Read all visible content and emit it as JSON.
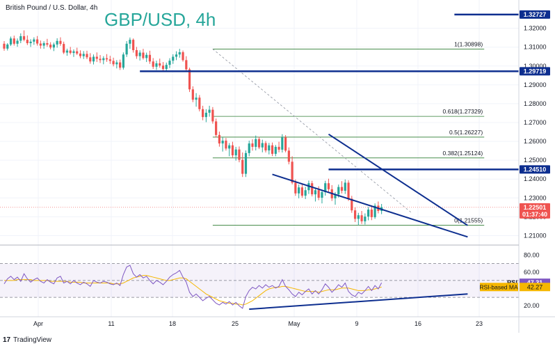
{
  "header": {
    "symbol_label": "British Pound / U.S. Dollar, 4h",
    "big_title": "GBP/USD, 4h"
  },
  "colors": {
    "up": "#26a69a",
    "down": "#ef5350",
    "trendline": "#0d2e8f",
    "fib": "#2e7d32",
    "rsi": "#7e57c2",
    "rsi_ma": "#f5b700",
    "title": "#26a69a",
    "price_badge": "#ef5350"
  },
  "footer": {
    "brand": "TradingView"
  },
  "chart_data": [
    {
      "type": "candlestick",
      "name": "price-panel",
      "y_ticks": [
        "1.32000",
        "1.31000",
        "1.30000",
        "1.29000",
        "1.28000",
        "1.27000",
        "1.26000",
        "1.25000",
        "1.24000",
        "1.23000",
        "1.22000",
        "1.21000"
      ],
      "ylim": [
        1.205,
        1.335
      ],
      "x_ticks": [
        "Apr",
        "11",
        "18",
        "25",
        "May",
        "9",
        "16",
        "23"
      ],
      "ohlc": [
        [
          1.3118,
          1.3132,
          1.3081,
          1.3092
        ],
        [
          1.3092,
          1.3121,
          1.3082,
          1.3114
        ],
        [
          1.3114,
          1.3156,
          1.3106,
          1.3146
        ],
        [
          1.3146,
          1.3161,
          1.3108,
          1.3118
        ],
        [
          1.3118,
          1.3146,
          1.3102,
          1.3134
        ],
        [
          1.3134,
          1.3173,
          1.3121,
          1.3158
        ],
        [
          1.3158,
          1.3189,
          1.3131,
          1.3139
        ],
        [
          1.3139,
          1.3162,
          1.3111,
          1.3121
        ],
        [
          1.3121,
          1.3142,
          1.3101,
          1.3129
        ],
        [
          1.3129,
          1.3152,
          1.3112,
          1.3141
        ],
        [
          1.3141,
          1.3159,
          1.3108,
          1.3119
        ],
        [
          1.3119,
          1.3135,
          1.3092,
          1.3108
        ],
        [
          1.3108,
          1.3131,
          1.3091,
          1.3121
        ],
        [
          1.3121,
          1.3144,
          1.3102,
          1.3113
        ],
        [
          1.3113,
          1.3126,
          1.3088,
          1.3098
        ],
        [
          1.3098,
          1.3124,
          1.3079,
          1.3114
        ],
        [
          1.3114,
          1.3147,
          1.3097,
          1.3133
        ],
        [
          1.3133,
          1.3152,
          1.3107,
          1.3117
        ],
        [
          1.3117,
          1.3129,
          1.3063,
          1.3071
        ],
        [
          1.3071,
          1.3092,
          1.3054,
          1.3082
        ],
        [
          1.3082,
          1.3101,
          1.3061,
          1.3069
        ],
        [
          1.3069,
          1.3088,
          1.3048,
          1.3078
        ],
        [
          1.3078,
          1.3097,
          1.3058,
          1.3066
        ],
        [
          1.3066,
          1.3083,
          1.3041,
          1.3052
        ],
        [
          1.3052,
          1.3079,
          1.3037,
          1.3064
        ],
        [
          1.3064,
          1.3081,
          1.3036,
          1.3046
        ],
        [
          1.3046,
          1.3068,
          1.3012,
          1.3024
        ],
        [
          1.3024,
          1.3061,
          1.3008,
          1.3049
        ],
        [
          1.3049,
          1.3072,
          1.3021,
          1.3038
        ],
        [
          1.3038,
          1.3058,
          1.3016,
          1.3031
        ],
        [
          1.3031,
          1.3052,
          1.3009,
          1.3041
        ],
        [
          1.3041,
          1.3063,
          1.3022,
          1.3035
        ],
        [
          1.3035,
          1.3054,
          1.3011,
          1.3027
        ],
        [
          1.3027,
          1.3044,
          1.2998,
          1.3009
        ],
        [
          1.3009,
          1.3031,
          1.2987,
          1.3019
        ],
        [
          1.3019,
          1.3034,
          1.2979,
          1.2991
        ],
        [
          1.2991,
          1.3072,
          1.2981,
          1.3061
        ],
        [
          1.3061,
          1.3132,
          1.3048,
          1.3118
        ],
        [
          1.3118,
          1.3151,
          1.3091,
          1.3139
        ],
        [
          1.3139,
          1.3146,
          1.3071,
          1.3084
        ],
        [
          1.3084,
          1.3101,
          1.3038,
          1.3052
        ],
        [
          1.3052,
          1.3083,
          1.3029,
          1.3071
        ],
        [
          1.3071,
          1.3091,
          1.3034,
          1.3042
        ],
        [
          1.3042,
          1.3071,
          1.3021,
          1.3059
        ],
        [
          1.3059,
          1.3081,
          1.3011,
          1.3024
        ],
        [
          1.3024,
          1.3042,
          1.2984,
          1.2996
        ],
        [
          1.2996,
          1.3028,
          1.2979,
          1.3014
        ],
        [
          1.3014,
          1.3039,
          1.2991,
          1.3002
        ],
        [
          1.3002,
          1.3021,
          1.2971,
          1.2984
        ],
        [
          1.2984,
          1.3018,
          1.2969,
          1.3006
        ],
        [
          1.3006,
          1.3041,
          1.2989,
          1.3028
        ],
        [
          1.3028,
          1.3062,
          1.3011,
          1.3049
        ],
        [
          1.3049,
          1.3078,
          1.3031,
          1.3061
        ],
        [
          1.3061,
          1.3091,
          1.3044,
          1.3073
        ],
        [
          1.3073,
          1.3082,
          1.3023,
          1.3031
        ],
        [
          1.3031,
          1.3052,
          1.2972,
          1.2982
        ],
        [
          1.2982,
          1.2991,
          1.2862,
          1.2876
        ],
        [
          1.2876,
          1.2892,
          1.2808,
          1.2821
        ],
        [
          1.2821,
          1.2856,
          1.2784,
          1.2832
        ],
        [
          1.2832,
          1.2846,
          1.2759,
          1.2771
        ],
        [
          1.2771,
          1.2789,
          1.2712,
          1.2729
        ],
        [
          1.2729,
          1.2771,
          1.2702,
          1.2752
        ],
        [
          1.2752,
          1.2789,
          1.2731,
          1.2768
        ],
        [
          1.2768,
          1.2782,
          1.2694,
          1.2706
        ],
        [
          1.2706,
          1.2721,
          1.2621,
          1.2634
        ],
        [
          1.2634,
          1.2652,
          1.2572,
          1.2589
        ],
        [
          1.2589,
          1.2621,
          1.2546,
          1.2604
        ],
        [
          1.2604,
          1.2618,
          1.2551,
          1.2562
        ],
        [
          1.2562,
          1.2591,
          1.2521,
          1.2579
        ],
        [
          1.2579,
          1.2598,
          1.2511,
          1.2526
        ],
        [
          1.2526,
          1.2571,
          1.2498,
          1.2557
        ],
        [
          1.2557,
          1.2573,
          1.2489,
          1.2502
        ],
        [
          1.2502,
          1.2541,
          1.2411,
          1.2428
        ],
        [
          1.2428,
          1.2552,
          1.2411,
          1.2538
        ],
        [
          1.2538,
          1.2604,
          1.2521,
          1.2589
        ],
        [
          1.2589,
          1.2611,
          1.2551,
          1.2571
        ],
        [
          1.2571,
          1.2631,
          1.2552,
          1.2612
        ],
        [
          1.2612,
          1.2624,
          1.2559,
          1.2568
        ],
        [
          1.2568,
          1.2609,
          1.2542,
          1.2591
        ],
        [
          1.2591,
          1.2602,
          1.2541,
          1.2552
        ],
        [
          1.2552,
          1.2592,
          1.2531,
          1.2579
        ],
        [
          1.2579,
          1.2594,
          1.2522,
          1.2534
        ],
        [
          1.2534,
          1.2581,
          1.2521,
          1.2571
        ],
        [
          1.2571,
          1.2598,
          1.2542,
          1.2556
        ],
        [
          1.2556,
          1.2638,
          1.2541,
          1.2621
        ],
        [
          1.2621,
          1.2633,
          1.2542,
          1.2551
        ],
        [
          1.2551,
          1.2568,
          1.2478,
          1.2492
        ],
        [
          1.2492,
          1.2521,
          1.2372,
          1.2381
        ],
        [
          1.2381,
          1.2398,
          1.2311,
          1.2324
        ],
        [
          1.2324,
          1.2371,
          1.2298,
          1.2356
        ],
        [
          1.2356,
          1.2374,
          1.2301,
          1.2312
        ],
        [
          1.2312,
          1.2359,
          1.2294,
          1.2341
        ],
        [
          1.2341,
          1.2392,
          1.2321,
          1.2378
        ],
        [
          1.2378,
          1.2391,
          1.2308,
          1.2319
        ],
        [
          1.2319,
          1.2352,
          1.2281,
          1.2341
        ],
        [
          1.2341,
          1.2362,
          1.2288,
          1.2301
        ],
        [
          1.2301,
          1.2342,
          1.2271,
          1.2331
        ],
        [
          1.2331,
          1.2391,
          1.2312,
          1.2378
        ],
        [
          1.2378,
          1.2402,
          1.2331,
          1.2346
        ],
        [
          1.2346,
          1.2368,
          1.2284,
          1.2298
        ],
        [
          1.2298,
          1.2331,
          1.2264,
          1.2319
        ],
        [
          1.2319,
          1.2371,
          1.2302,
          1.2358
        ],
        [
          1.2358,
          1.2389,
          1.2324,
          1.2338
        ],
        [
          1.2338,
          1.2398,
          1.2321,
          1.2381
        ],
        [
          1.2381,
          1.2394,
          1.2284,
          1.2296
        ],
        [
          1.2296,
          1.2311,
          1.2221,
          1.2234
        ],
        [
          1.2234,
          1.2251,
          1.2172,
          1.2189
        ],
        [
          1.2189,
          1.2221,
          1.2156,
          1.2208
        ],
        [
          1.2208,
          1.2231,
          1.2162,
          1.2176
        ],
        [
          1.2176,
          1.2218,
          1.2159,
          1.2201
        ],
        [
          1.2201,
          1.2252,
          1.2181,
          1.2238
        ],
        [
          1.2238,
          1.2261,
          1.2182,
          1.2198
        ],
        [
          1.2198,
          1.2271,
          1.2189,
          1.2259
        ],
        [
          1.2259,
          1.2281,
          1.2218,
          1.2231
        ],
        [
          1.2231,
          1.2268,
          1.2214,
          1.2251
        ]
      ],
      "annotations": {
        "horizontal_levels": [
          {
            "label": "1.32727",
            "value": 1.32727,
            "x_start_index": 136,
            "badge": true
          },
          {
            "label": "1.29719",
            "value": 1.29719,
            "x_start_index": 41,
            "badge": true
          },
          {
            "label": "1.24510",
            "value": 1.2451,
            "x_start_index": 98,
            "badge": true
          }
        ],
        "fibonacci": [
          {
            "label": "1(1.30898)",
            "value": 1.30898
          },
          {
            "label": "0.618(1.27329)",
            "value": 1.27329
          },
          {
            "label": "0.5(1.26227)",
            "value": 1.26227
          },
          {
            "label": "0.382(1.25124)",
            "value": 1.25124
          },
          {
            "label": "0(1.21555)",
            "value": 1.21555
          }
        ],
        "fib_x_range_index": [
          63,
          145
        ],
        "upper_trendline": [
          [
            98,
            1.2638
          ],
          [
            140,
            1.2154
          ]
        ],
        "lower_trendline": [
          [
            81,
            1.2425
          ],
          [
            140,
            1.2093
          ]
        ],
        "dashed_trendline": [
          [
            63,
            1.309
          ],
          [
            123,
            1.2222
          ]
        ],
        "last_price": {
          "value": 1.22501,
          "label": "1.22501",
          "timer": "01:37:40"
        }
      }
    },
    {
      "type": "line",
      "name": "rsi-panel",
      "y_ticks": [
        "80.00",
        "60.00",
        "40.00",
        "20.00"
      ],
      "ylim": [
        7,
        92
      ],
      "bands": [
        70,
        50,
        30
      ],
      "series": [
        {
          "name": "RSI",
          "last_label": "47.31",
          "values": [
            46,
            52,
            55,
            51,
            54,
            49,
            58,
            52,
            48,
            51,
            53,
            49,
            47,
            51,
            48,
            46,
            53,
            55,
            47,
            49,
            46,
            50,
            47,
            45,
            48,
            46,
            43,
            50,
            48,
            47,
            49,
            48,
            46,
            45,
            47,
            44,
            57,
            66,
            68,
            58,
            54,
            57,
            53,
            55,
            50,
            46,
            50,
            48,
            45,
            49,
            54,
            57,
            59,
            62,
            54,
            48,
            36,
            31,
            34,
            30,
            26,
            29,
            31,
            27,
            23,
            21,
            24,
            22,
            25,
            21,
            24,
            20,
            17,
            31,
            38,
            42,
            40,
            44,
            41,
            45,
            42,
            44,
            41,
            43,
            51,
            43,
            39,
            34,
            31,
            36,
            33,
            37,
            40,
            34,
            38,
            34,
            39,
            46,
            42,
            36,
            40,
            45,
            42,
            47,
            37,
            33,
            31,
            36,
            34,
            38,
            43,
            38,
            44,
            40,
            47.31
          ]
        },
        {
          "name": "RSI-based MA",
          "last_label": "42.27",
          "values": [
            50,
            50,
            50,
            50,
            51,
            51,
            51,
            51,
            51,
            50,
            50,
            50,
            50,
            50,
            49,
            49,
            49,
            49,
            49,
            49,
            48,
            48,
            48,
            48,
            47,
            47,
            47,
            47,
            47,
            47,
            47,
            47,
            47,
            46,
            46,
            46,
            47,
            49,
            51,
            53,
            54,
            55,
            56,
            56,
            55,
            54,
            53,
            52,
            51,
            50,
            50,
            51,
            52,
            53,
            53,
            52,
            49,
            46,
            43,
            40,
            37,
            34,
            32,
            30,
            28,
            26,
            25,
            24,
            23,
            23,
            22,
            22,
            21,
            22,
            24,
            26,
            29,
            32,
            35,
            38,
            40,
            41,
            42,
            42,
            43,
            43,
            42,
            41,
            40,
            39,
            38,
            37,
            37,
            37,
            37,
            36,
            37,
            38,
            39,
            39,
            39,
            40,
            41,
            41,
            41,
            40,
            39,
            38,
            38,
            38,
            39,
            39,
            40,
            41,
            42.27
          ]
        }
      ],
      "support_trendline": [
        [
          74,
          16
        ],
        [
          140,
          34
        ]
      ]
    }
  ]
}
